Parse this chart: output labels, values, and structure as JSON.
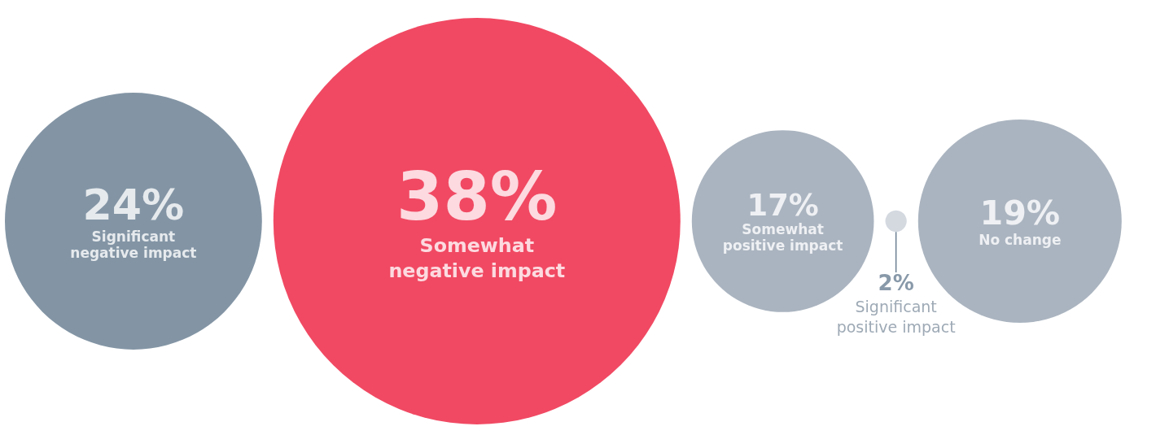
{
  "chart_data": {
    "type": "other",
    "categories": [
      "Significant negative impact",
      "Somewhat negative impact",
      "Somewhat positive impact",
      "Significant positive impact",
      "No change"
    ],
    "values": [
      24,
      38,
      17,
      2,
      19
    ],
    "value_labels": [
      "24%",
      "38%",
      "17%",
      "2%",
      "19%"
    ],
    "colors": [
      "#647b8f",
      "#ee1b3c",
      "#95a1b0",
      "#c9d0d8",
      "#95a1b0"
    ]
  }
}
